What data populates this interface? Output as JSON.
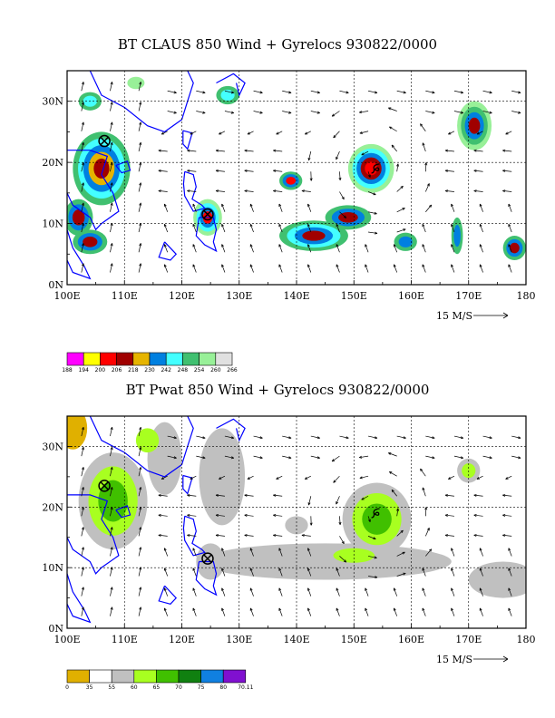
{
  "panel1": {
    "title": "BT CLAUS 850 Wind + Gyrelocs 930822/0000",
    "y_labels": [
      "30N",
      "20N",
      "10N",
      "0N"
    ],
    "x_labels": [
      "100E",
      "110E",
      "120E",
      "130E",
      "140E",
      "150E",
      "160E",
      "170E",
      "180"
    ],
    "wind_scale_label": "15 M/S",
    "legend": {
      "colors": [
        "#ff00ff",
        "#ffff00",
        "#ff0000",
        "#a00000",
        "#e6b400",
        "#0080e0",
        "#44ffff",
        "#40c070",
        "#98f098",
        "#e0e0e0"
      ],
      "labels": [
        "188",
        "194",
        "200",
        "206",
        "218",
        "230",
        "242",
        "248",
        "254",
        "260",
        "266"
      ]
    }
  },
  "panel2": {
    "title": "BT Pwat 850 Wind + Gyrelocs 930822/0000",
    "y_labels": [
      "30N",
      "20N",
      "10N",
      "0N"
    ],
    "x_labels": [
      "100E",
      "110E",
      "120E",
      "130E",
      "140E",
      "150E",
      "160E",
      "170E",
      "180"
    ],
    "wind_scale_label": "15 M/S",
    "legend": {
      "colors": [
        "#e0b000",
        "#ffffff",
        "#c0c0c0",
        "#a8ff20",
        "#40c000",
        "#108010",
        "#1080e0",
        "#8010d0"
      ],
      "labels": [
        "0",
        "35",
        "55",
        "60",
        "65",
        "70",
        "75",
        "80",
        "70.11"
      ]
    }
  },
  "map_extent": {
    "lon": [
      100,
      180
    ],
    "lat": [
      0,
      35
    ]
  },
  "markers": {
    "gyre_symbols": [
      {
        "lon": 106.5,
        "lat": 23.5
      },
      {
        "lon": 124.5,
        "lat": 11.5
      }
    ],
    "storm_symbols": [
      {
        "lon": 154.0,
        "lat": 19.0
      }
    ]
  },
  "colors": {
    "coast": "#0000ff",
    "grid": "#000000"
  }
}
